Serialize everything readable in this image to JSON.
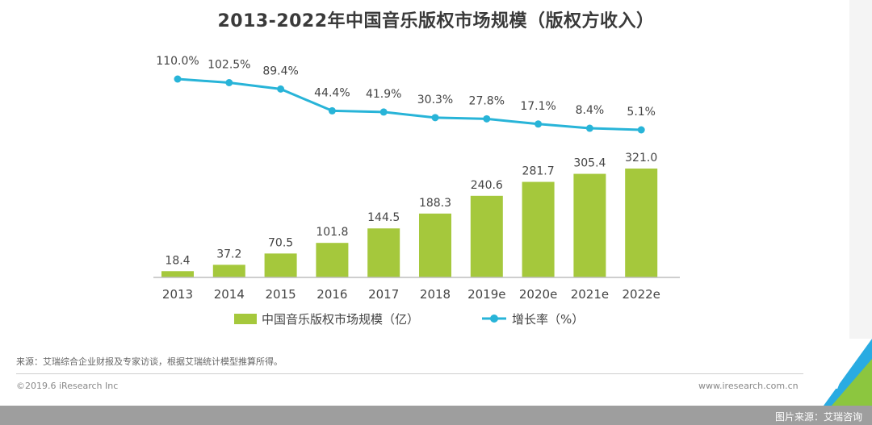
{
  "chart_data": {
    "type": "bar+line",
    "title": "2013-2022年中国音乐版权市场规模（版权方收入）",
    "categories": [
      "2013",
      "2014",
      "2015",
      "2016",
      "2017",
      "2018",
      "2019e",
      "2020e",
      "2021e",
      "2022e"
    ],
    "series": [
      {
        "name": "中国音乐版权市场规模（亿）",
        "type": "bar",
        "values": [
          18.4,
          37.2,
          70.5,
          101.8,
          144.5,
          188.3,
          240.6,
          281.7,
          305.4,
          321.0
        ],
        "labels": [
          "18.4",
          "37.2",
          "70.5",
          "101.8",
          "144.5",
          "188.3",
          "240.6",
          "281.7",
          "305.4",
          "321.0"
        ],
        "color": "#a5c83c"
      },
      {
        "name": "增长率（%）",
        "type": "line",
        "values": [
          110.0,
          102.5,
          89.4,
          44.4,
          41.9,
          30.3,
          27.8,
          17.1,
          8.4,
          5.1
        ],
        "labels": [
          "110.0%",
          "102.5%",
          "89.4%",
          "44.4%",
          "41.9%",
          "30.3%",
          "27.8%",
          "17.1%",
          "8.4%",
          "5.1%"
        ],
        "color": "#28b4d8"
      }
    ],
    "ylim_bar": [
      0,
      321.0
    ],
    "ylim_line": [
      0,
      110.0
    ],
    "legend_position": "bottom-center",
    "grid": false
  },
  "footer": {
    "source": "来源：艾瑞综合企业财报及专家访谈，根据艾瑞统计模型推算所得。",
    "copyright": "©2019.6 iResearch Inc",
    "website": "www.iresearch.com.cn",
    "page_number": "7"
  },
  "watermark": "图片来源：艾瑞咨询",
  "colors": {
    "bar": "#a5c83c",
    "line": "#28b4d8",
    "accent_green": "#8cc63f",
    "accent_blue": "#29abe2"
  }
}
